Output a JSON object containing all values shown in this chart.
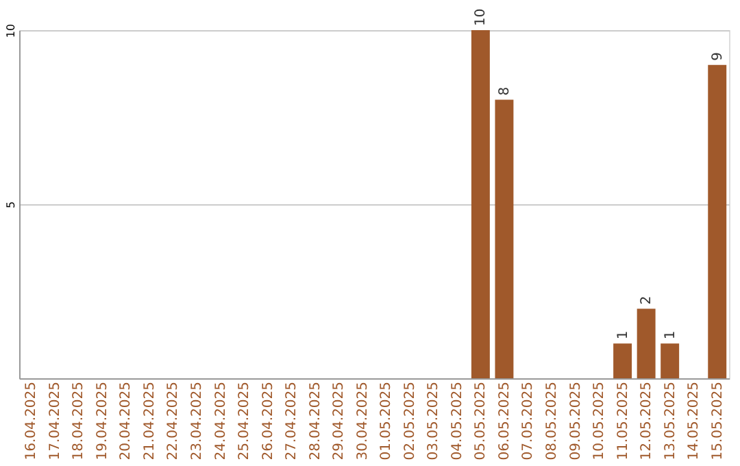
{
  "chart_data": {
    "type": "bar",
    "categories": [
      "16.04.2025",
      "17.04.2025",
      "18.04.2025",
      "19.04.2025",
      "20.04.2025",
      "21.04.2025",
      "22.04.2025",
      "23.04.2025",
      "24.04.2025",
      "25.04.2025",
      "26.04.2025",
      "27.04.2025",
      "28.04.2025",
      "29.04.2025",
      "30.04.2025",
      "01.05.2025",
      "02.05.2025",
      "03.05.2025",
      "04.05.2025",
      "05.05.2025",
      "06.05.2025",
      "07.05.2025",
      "08.05.2025",
      "09.05.2025",
      "10.05.2025",
      "11.05.2025",
      "12.05.2025",
      "13.05.2025",
      "14.05.2025",
      "15.05.2025"
    ],
    "values": [
      0,
      0,
      0,
      0,
      0,
      0,
      0,
      0,
      0,
      0,
      0,
      0,
      0,
      0,
      0,
      0,
      0,
      0,
      0,
      10,
      8,
      0,
      0,
      0,
      0,
      1,
      2,
      1,
      0,
      9
    ],
    "value_labels": [
      null,
      null,
      null,
      null,
      null,
      null,
      null,
      null,
      null,
      null,
      null,
      null,
      null,
      null,
      null,
      null,
      null,
      null,
      null,
      "10",
      "8",
      null,
      null,
      null,
      null,
      "1",
      "2",
      "1",
      null,
      "9"
    ],
    "color": "#a0592b",
    "ylim": [
      0,
      10
    ],
    "yticks": [
      5,
      10
    ],
    "grid": "y"
  }
}
